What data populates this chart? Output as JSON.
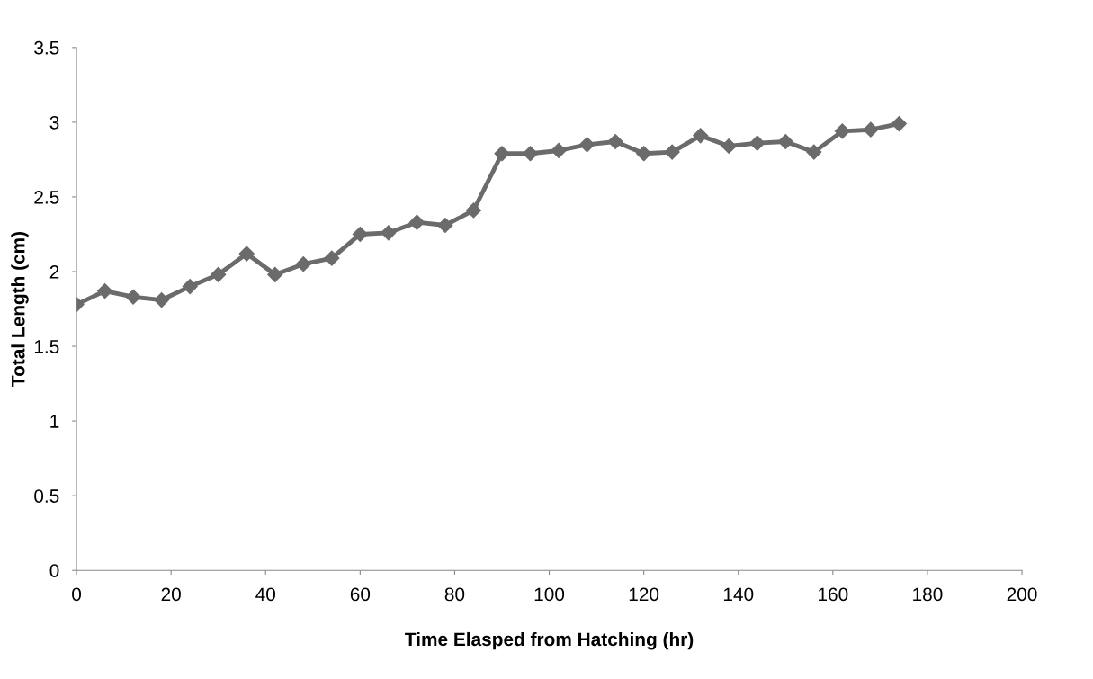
{
  "chart_data": {
    "type": "line",
    "xlabel": "Time Elasped from Hatching (hr)",
    "ylabel": "Total Length (cm)",
    "x": [
      0,
      6,
      12,
      18,
      24,
      30,
      36,
      42,
      48,
      54,
      60,
      66,
      72,
      78,
      84,
      90,
      96,
      102,
      108,
      114,
      120,
      126,
      132,
      138,
      144,
      150,
      156,
      162,
      168,
      174
    ],
    "series": [
      {
        "color": "#6b6b6b",
        "values": [
          1.78,
          1.87,
          1.83,
          1.81,
          1.9,
          1.98,
          2.12,
          1.98,
          2.05,
          2.09,
          2.25,
          2.26,
          2.33,
          2.31,
          2.41,
          2.79,
          2.79,
          2.81,
          2.85,
          2.87,
          2.79,
          2.8,
          2.91,
          2.84,
          2.86,
          2.87,
          2.8,
          2.94,
          2.95,
          2.99
        ]
      }
    ],
    "xlim": [
      0,
      200
    ],
    "xticks": [
      0,
      20,
      40,
      60,
      80,
      100,
      120,
      140,
      160,
      180,
      200
    ],
    "ylim": [
      0,
      3.5
    ],
    "yticks": [
      0,
      0.5,
      1,
      1.5,
      2,
      2.5,
      3,
      3.5
    ],
    "grid": false,
    "marker": "diamond",
    "line_style": "solid"
  }
}
